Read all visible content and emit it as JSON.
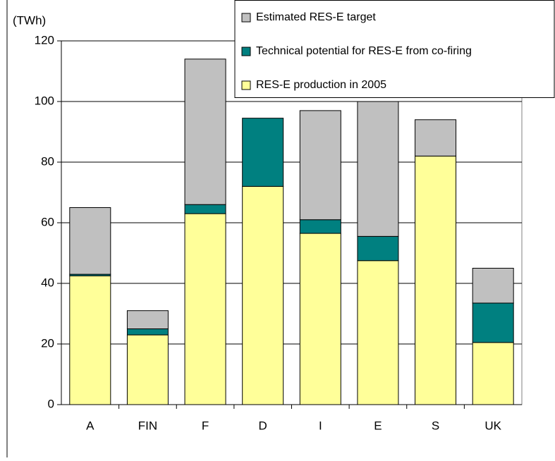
{
  "chart_data": {
    "type": "stacked_bar",
    "ylabel": "(TWh)",
    "categories": [
      "A",
      "FIN",
      "F",
      "D",
      "I",
      "E",
      "S",
      "UK"
    ],
    "series": [
      {
        "name": "RES-E production in 2005",
        "color": "#ffff99",
        "values": [
          42.5,
          23,
          63,
          72,
          56.5,
          47.5,
          82,
          20.5
        ]
      },
      {
        "name": "Technical potential for RES-E from co-firing",
        "color": "#008080",
        "values": [
          0.5,
          2,
          3,
          22.5,
          4.5,
          8,
          0,
          13
        ]
      },
      {
        "name": "Estimated RES-E target",
        "color": "#c0c0c0",
        "values": [
          22,
          6,
          48,
          0,
          36,
          44.5,
          12,
          11.5
        ]
      }
    ],
    "ylim": [
      0,
      120
    ],
    "yticks": [
      0,
      20,
      40,
      60,
      80,
      100,
      120
    ],
    "grid": true,
    "legend": "top-right"
  }
}
